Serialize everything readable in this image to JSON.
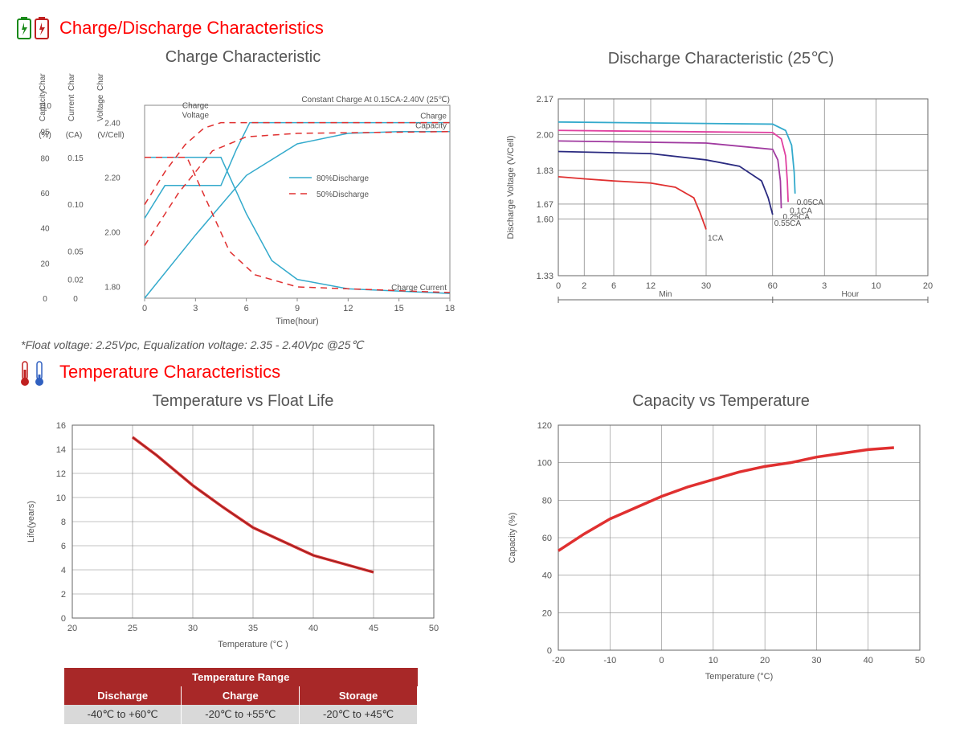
{
  "section1": {
    "title": "Charge/Discharge Characteristics"
  },
  "footnote": "*Float voltage: 2.25Vpc, Equalization voltage: 2.35 - 2.40Vpc @25℃",
  "section2": {
    "title": "Temperature Characteristics"
  },
  "chart_charge": {
    "title": "Charge Characteristic",
    "note": "Constant Charge At 0.15CA-2.40V  (25℃)",
    "axis_time_label": "Time(hour)",
    "y1_label_top": "Charge",
    "y1_label_bot": "Capacity",
    "y2_label_top": "Charge",
    "y2_label_bot": "Current",
    "y3_label_top": "Charge",
    "y3_label_bot": "Voltage",
    "y1_unit": "(%)",
    "y2_unit": "(CA)",
    "y3_unit": "(V/Cell)",
    "x_ticks": [
      "0",
      "3",
      "6",
      "9",
      "12",
      "15",
      "18"
    ],
    "y1_ticks": [
      "0",
      "20",
      "40",
      "60",
      "80",
      "95",
      "110"
    ],
    "y2_ticks": [
      "0",
      "0.02",
      "0.05",
      "0.10",
      "0.15"
    ],
    "y3_ticks": [
      "1.80",
      "2.00",
      "2.20",
      "2.40"
    ],
    "legend1": "80%Discharge",
    "legend2": "50%Discharge",
    "ann_voltage": "Charge\nVoltage",
    "ann_capacity": "Charge\nCapacity",
    "ann_current": "Charge Current",
    "color_80": "#33aacc",
    "color_50": "#e03030",
    "curves80": {
      "voltage": [
        [
          0,
          2.05
        ],
        [
          1.2,
          2.17
        ],
        [
          2.4,
          2.17
        ],
        [
          4.5,
          2.17
        ],
        [
          5.4,
          2.3
        ],
        [
          6.2,
          2.4
        ],
        [
          18,
          2.4
        ]
      ],
      "capacity": [
        [
          0,
          0
        ],
        [
          3,
          36
        ],
        [
          6,
          70
        ],
        [
          9,
          88
        ],
        [
          12,
          94
        ],
        [
          15,
          95
        ],
        [
          18,
          95
        ]
      ],
      "current": [
        [
          0,
          0.15
        ],
        [
          4.5,
          0.15
        ],
        [
          6,
          0.09
        ],
        [
          7.5,
          0.04
        ],
        [
          9,
          0.02
        ],
        [
          12,
          0.01
        ],
        [
          18,
          0.005
        ]
      ]
    },
    "curves50": {
      "voltage": [
        [
          0,
          2.1
        ],
        [
          1.2,
          2.22
        ],
        [
          2.4,
          2.32
        ],
        [
          3.5,
          2.38
        ],
        [
          4.5,
          2.4
        ],
        [
          18,
          2.4
        ]
      ],
      "capacity": [
        [
          0,
          30
        ],
        [
          2,
          60
        ],
        [
          4,
          84
        ],
        [
          6,
          92
        ],
        [
          9,
          94
        ],
        [
          18,
          95
        ]
      ],
      "current": [
        [
          0,
          0.15
        ],
        [
          2.5,
          0.15
        ],
        [
          4,
          0.09
        ],
        [
          5,
          0.05
        ],
        [
          6.5,
          0.025
        ],
        [
          9,
          0.012
        ],
        [
          18,
          0.006
        ]
      ]
    }
  },
  "chart_discharge": {
    "title": "Discharge Characteristic (25℃)",
    "y_label": "Discharge Voltage (V/Cell)",
    "y_ticks": [
      "1.33",
      "1.60",
      "1.67",
      "1.83",
      "2.00",
      "2.17"
    ],
    "x_ticks": [
      "0",
      "2",
      "6",
      "12",
      "30",
      "60",
      "3",
      "10",
      "20"
    ],
    "x_min_label": "Min",
    "x_hour_label": "Hour",
    "series": [
      {
        "label": "1CA",
        "color": "#e03030",
        "pts": [
          [
            0,
            1.8
          ],
          [
            2,
            1.79
          ],
          [
            6,
            1.78
          ],
          [
            12,
            1.77
          ],
          [
            20,
            1.75
          ],
          [
            26,
            1.7
          ],
          [
            28,
            1.63
          ],
          [
            30,
            1.55
          ]
        ]
      },
      {
        "label": "0.55CA",
        "color": "#2a2a80",
        "pts": [
          [
            0,
            1.92
          ],
          [
            12,
            1.91
          ],
          [
            30,
            1.88
          ],
          [
            45,
            1.85
          ],
          [
            55,
            1.78
          ],
          [
            58,
            1.7
          ],
          [
            60,
            1.62
          ]
        ]
      },
      {
        "label": "0.25CA",
        "color": "#a03aa0",
        "pts": [
          [
            0,
            1.97
          ],
          [
            30,
            1.96
          ],
          [
            60,
            1.93
          ],
          [
            72,
            1.88
          ],
          [
            78,
            1.78
          ],
          [
            80,
            1.65
          ]
        ]
      },
      {
        "label": "0.1CA",
        "color": "#e040a0",
        "pts": [
          [
            0,
            2.02
          ],
          [
            60,
            2.01
          ],
          [
            80,
            1.98
          ],
          [
            90,
            1.9
          ],
          [
            94,
            1.78
          ],
          [
            96,
            1.68
          ]
        ]
      },
      {
        "label": "0.05CA",
        "color": "#33aacc",
        "pts": [
          [
            0,
            2.06
          ],
          [
            60,
            2.05
          ],
          [
            90,
            2.02
          ],
          [
            104,
            1.95
          ],
          [
            110,
            1.82
          ],
          [
            112,
            1.72
          ]
        ]
      }
    ]
  },
  "chart_floatlife": {
    "title": "Temperature vs Float Life",
    "x_label": "Temperature (°C )",
    "y_label": "Life(years)",
    "x_ticks": [
      "20",
      "25",
      "30",
      "35",
      "40",
      "45",
      "50"
    ],
    "y_ticks": [
      "0",
      "2",
      "4",
      "6",
      "8",
      "10",
      "12",
      "14",
      "16"
    ],
    "color": "#e03030",
    "pts": [
      [
        25,
        15
      ],
      [
        27,
        13.5
      ],
      [
        30,
        11
      ],
      [
        32.5,
        9.2
      ],
      [
        35,
        7.5
      ],
      [
        40,
        5.2
      ],
      [
        45,
        3.8
      ]
    ]
  },
  "chart_capacity": {
    "title": "Capacity vs Temperature",
    "x_label": "Temperature (°C)",
    "y_label": "Capacity (%)",
    "x_ticks": [
      "-20",
      "-10",
      "0",
      "10",
      "20",
      "30",
      "40",
      "50"
    ],
    "y_ticks": [
      "0",
      "20",
      "40",
      "60",
      "80",
      "100",
      "120"
    ],
    "color": "#e03030",
    "pts": [
      [
        -20,
        53
      ],
      [
        -15,
        62
      ],
      [
        -10,
        70
      ],
      [
        -5,
        76
      ],
      [
        0,
        82
      ],
      [
        5,
        87
      ],
      [
        10,
        91
      ],
      [
        15,
        95
      ],
      [
        20,
        98
      ],
      [
        25,
        100
      ],
      [
        30,
        103
      ],
      [
        35,
        105
      ],
      [
        40,
        107
      ],
      [
        45,
        108
      ]
    ]
  },
  "temp_table": {
    "header": "Temperature Range",
    "cols": [
      "Discharge",
      "Charge",
      "Storage"
    ],
    "vals": [
      "-40℃ to +60℃",
      "-20℃ to +55℃",
      "-20℃ to +45℃"
    ]
  }
}
